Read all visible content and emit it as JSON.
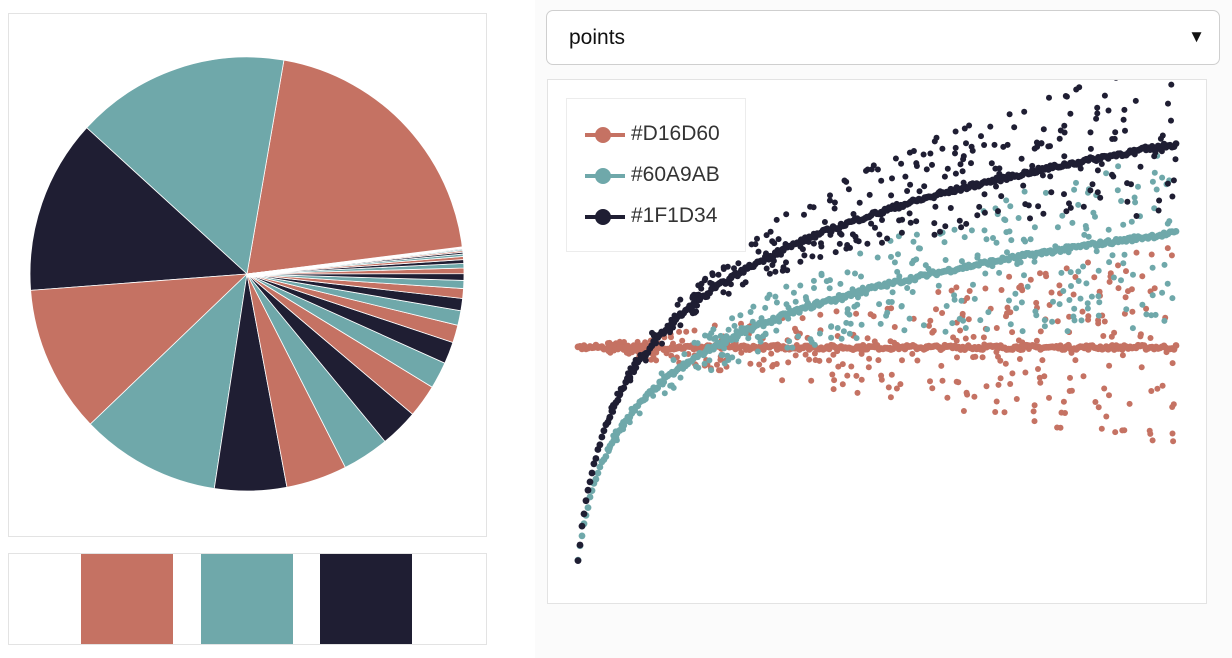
{
  "palette": [
    "#C57263",
    "#6FA8AA",
    "#1F1E33"
  ],
  "palette_hex_labels": [
    "#D16D60",
    "#60A9AB",
    "#1F1D34"
  ],
  "select": {
    "value": "points",
    "arrow": "▼"
  },
  "chart_data": [
    {
      "type": "pie",
      "slices": [
        {
          "color_index": 0,
          "fraction": 0.2228
        },
        {
          "color_index": 1,
          "fraction": 0.1595
        },
        {
          "color_index": 2,
          "fraction": 0.1297
        },
        {
          "color_index": 0,
          "fraction": 0.1096
        },
        {
          "color_index": 1,
          "fraction": 0.1043
        },
        {
          "color_index": 2,
          "fraction": 0.0536
        },
        {
          "color_index": 0,
          "fraction": 0.0454
        },
        {
          "color_index": 1,
          "fraction": 0.0348
        },
        {
          "color_index": 2,
          "fraction": 0.0285
        },
        {
          "color_index": 0,
          "fraction": 0.0245
        },
        {
          "color_index": 1,
          "fraction": 0.0199
        },
        {
          "color_index": 2,
          "fraction": 0.0163
        },
        {
          "color_index": 0,
          "fraction": 0.0131
        },
        {
          "color_index": 1,
          "fraction": 0.0109
        },
        {
          "color_index": 2,
          "fraction": 0.0091
        },
        {
          "color_index": 0,
          "fraction": 0.0073
        },
        {
          "color_index": 1,
          "fraction": 0.006
        },
        {
          "color_index": 2,
          "fraction": 0.005
        },
        {
          "color_index": 0,
          "fraction": 0.0041
        },
        {
          "color_index": 1,
          "fraction": 0.0034
        },
        {
          "color_index": 2,
          "fraction": 0.0028
        },
        {
          "color_index": 0,
          "fraction": 0.0023
        },
        {
          "color_index": 1,
          "fraction": 0.0018
        },
        {
          "color_index": 2,
          "fraction": 0.0014
        },
        {
          "color_index": 0,
          "fraction": 0.0011
        },
        {
          "color_index": 1,
          "fraction": 0.0009
        },
        {
          "color_index": 2,
          "fraction": 0.0007
        },
        {
          "color_index": 0,
          "fraction": 0.0005
        },
        {
          "color_index": 1,
          "fraction": 0.0004
        },
        {
          "color_index": 2,
          "fraction": 0.0003
        }
      ]
    },
    {
      "type": "scatter",
      "xlim": [
        0,
        1
      ],
      "ylim": [
        -0.15,
        1.15
      ],
      "grid": false,
      "legend_position": "top-left",
      "series": [
        {
          "name": "#D16D60",
          "color_index": 0,
          "trend": {
            "base": 0.48,
            "growth": 0.0
          },
          "scatter_spread_mean": 0.0,
          "scatter_spread_range": 0.24
        },
        {
          "name": "#60A9AB",
          "color_index": 1,
          "trend": {
            "base": 0.0,
            "growth": 0.79
          },
          "scatter_spread_mean": -0.02,
          "scatter_spread_range": 0.22
        },
        {
          "name": "#1F1D34",
          "color_index": 2,
          "trend": {
            "base": 0.0,
            "growth": 1.03
          },
          "scatter_spread_mean": 0.04,
          "scatter_spread_range": 0.2
        }
      ]
    }
  ]
}
